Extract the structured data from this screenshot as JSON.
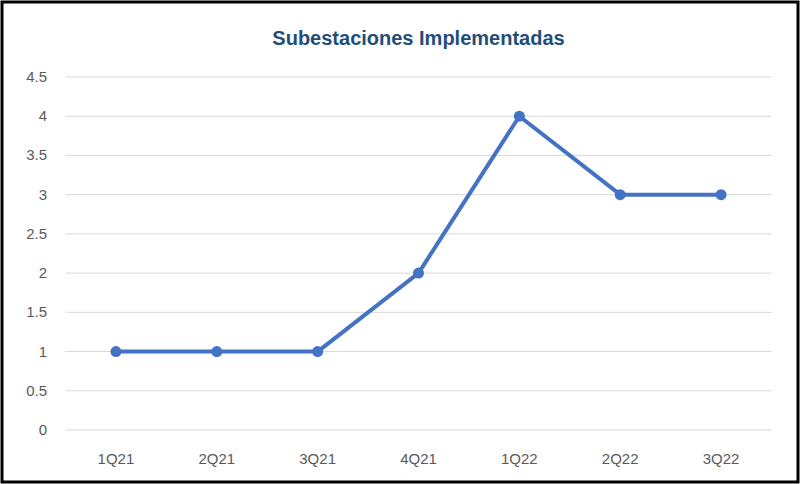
{
  "chart_data": {
    "type": "line",
    "title": "Subestaciones Implementadas",
    "categories": [
      "1Q21",
      "2Q21",
      "3Q21",
      "4Q21",
      "1Q22",
      "2Q22",
      "3Q22"
    ],
    "values": [
      1,
      1,
      1,
      2,
      4,
      3,
      3
    ],
    "color": "#4472c4",
    "marker": "circle",
    "line_style": "solid",
    "ylim": [
      0,
      4.5
    ],
    "yticks": [
      0,
      0.5,
      1,
      1.5,
      2,
      2.5,
      3,
      3.5,
      4,
      4.5
    ],
    "grid": true
  }
}
